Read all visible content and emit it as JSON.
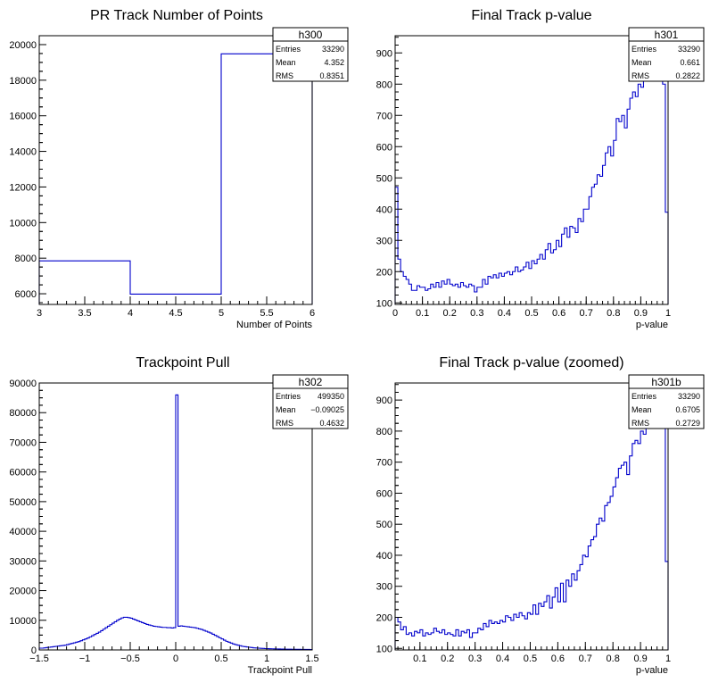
{
  "chart_data": [
    {
      "type": "bar",
      "title": "PR Track Number of Points",
      "xlabel": "Number of Points",
      "ylabel": "",
      "xlim": [
        3,
        6
      ],
      "ylim": [
        5400,
        20500
      ],
      "xticks": [
        3,
        3.5,
        4,
        4.5,
        5,
        5.5,
        6
      ],
      "xtick_labels": [
        "3",
        "3.5",
        "4",
        "4.5",
        "5",
        "5.5",
        "6"
      ],
      "yticks": [
        6000,
        8000,
        10000,
        12000,
        14000,
        16000,
        18000,
        20000
      ],
      "ytick_labels": [
        "6000",
        "8000",
        "10000",
        "12000",
        "14000",
        "16000",
        "18000",
        "20000"
      ],
      "bin_edges": [
        3,
        4,
        5,
        6
      ],
      "values": [
        7850,
        5980,
        19480
      ],
      "stats": {
        "name": "h300",
        "rows": [
          [
            "Entries",
            "33290"
          ],
          [
            "Mean",
            "4.352"
          ],
          [
            "RMS",
            "0.8351"
          ]
        ]
      }
    },
    {
      "type": "bar",
      "title": "Final Track p-value",
      "xlabel": "p-value",
      "ylabel": "",
      "xlim": [
        0,
        1
      ],
      "ylim": [
        95,
        955
      ],
      "xticks": [
        0,
        0.1,
        0.2,
        0.3,
        0.4,
        0.5,
        0.6,
        0.7,
        0.8,
        0.9,
        1
      ],
      "xtick_labels": [
        "0",
        "0.1",
        "0.2",
        "0.3",
        "0.4",
        "0.5",
        "0.6",
        "0.7",
        "0.8",
        "0.9",
        "1"
      ],
      "yticks": [
        100,
        200,
        300,
        400,
        500,
        600,
        700,
        800,
        900
      ],
      "ytick_labels": [
        "100",
        "200",
        "300",
        "400",
        "500",
        "600",
        "700",
        "800",
        "900"
      ],
      "bin_edges_uniform": [
        0,
        1,
        100
      ],
      "values": [
        470,
        240,
        200,
        185,
        175,
        160,
        140,
        140,
        155,
        150,
        150,
        140,
        145,
        160,
        150,
        165,
        150,
        170,
        160,
        175,
        160,
        155,
        160,
        150,
        165,
        155,
        150,
        160,
        155,
        135,
        150,
        150,
        175,
        160,
        185,
        180,
        190,
        180,
        195,
        185,
        195,
        200,
        190,
        200,
        215,
        200,
        205,
        215,
        230,
        210,
        235,
        225,
        240,
        255,
        240,
        270,
        290,
        260,
        270,
        300,
        280,
        320,
        340,
        310,
        345,
        340,
        325,
        370,
        360,
        400,
        400,
        440,
        470,
        480,
        510,
        505,
        540,
        580,
        600,
        570,
        620,
        690,
        680,
        700,
        660,
        720,
        755,
        775,
        760,
        800,
        790,
        820,
        810,
        850,
        815,
        870,
        815,
        815,
        800,
        390
      ],
      "stats": {
        "name": "h301",
        "rows": [
          [
            "Entries",
            "33290"
          ],
          [
            "Mean",
            "0.661"
          ],
          [
            "RMS",
            "0.2822"
          ]
        ]
      }
    },
    {
      "type": "bar",
      "title": "Trackpoint Pull",
      "xlabel": "Trackpoint Pull",
      "ylabel": "",
      "xlim": [
        -1.5,
        1.5
      ],
      "ylim": [
        0,
        90000
      ],
      "xticks": [
        -1.5,
        -1,
        -0.5,
        0,
        0.5,
        1,
        1.5
      ],
      "xtick_labels": [
        "−1.5",
        "−1",
        "−0.5",
        "0",
        "0.5",
        "1",
        "1.5"
      ],
      "yticks": [
        0,
        10000,
        20000,
        30000,
        40000,
        50000,
        60000,
        70000,
        80000,
        90000
      ],
      "ytick_labels": [
        "0",
        "10000",
        "20000",
        "30000",
        "40000",
        "50000",
        "60000",
        "70000",
        "80000",
        "90000"
      ],
      "bin_edges_uniform": [
        -1.5,
        1.5,
        120
      ],
      "values": [
        600,
        600,
        700,
        800,
        900,
        1000,
        1100,
        1200,
        1300,
        1400,
        1500,
        1600,
        1800,
        2000,
        2200,
        2400,
        2600,
        2800,
        3100,
        3400,
        3700,
        4000,
        4400,
        4800,
        5200,
        5600,
        6000,
        6500,
        7000,
        7500,
        8000,
        8500,
        9000,
        9500,
        10000,
        10400,
        10800,
        11000,
        11000,
        10900,
        10700,
        10400,
        10100,
        9800,
        9500,
        9200,
        8900,
        8600,
        8400,
        8200,
        8000,
        7900,
        7800,
        7700,
        7600,
        7600,
        7500,
        7500,
        7400,
        7500,
        86000,
        8000,
        8100,
        8000,
        7900,
        7800,
        7700,
        7600,
        7500,
        7300,
        7100,
        6900,
        6600,
        6300,
        6000,
        5700,
        5300,
        4900,
        4500,
        4100,
        3700,
        3300,
        2900,
        2600,
        2300,
        2000,
        1800,
        1600,
        1400,
        1200,
        1100,
        1000,
        900,
        800,
        700,
        650,
        600,
        550,
        500,
        450,
        420,
        400,
        380,
        360,
        340,
        320,
        300,
        280,
        260,
        250,
        240,
        230,
        220,
        210,
        200,
        190,
        180,
        170,
        160,
        150
      ],
      "stats": {
        "name": "h302",
        "rows": [
          [
            "Entries",
            "499350"
          ],
          [
            "Mean",
            "−0.09025"
          ],
          [
            "RMS",
            "0.4632"
          ]
        ]
      }
    },
    {
      "type": "bar",
      "title": "Final Track p-value (zoomed)",
      "xlabel": "p-value",
      "ylabel": "",
      "xlim": [
        0.01,
        1
      ],
      "ylim": [
        95,
        955
      ],
      "xticks": [
        0.1,
        0.2,
        0.3,
        0.4,
        0.5,
        0.6,
        0.7,
        0.8,
        0.9,
        1
      ],
      "xtick_labels": [
        "0.1",
        "0.2",
        "0.3",
        "0.4",
        "0.5",
        "0.6",
        "0.7",
        "0.8",
        "0.9",
        "1"
      ],
      "yticks": [
        100,
        200,
        300,
        400,
        500,
        600,
        700,
        800,
        900
      ],
      "ytick_labels": [
        "100",
        "200",
        "300",
        "400",
        "500",
        "600",
        "700",
        "800",
        "900"
      ],
      "bin_edges_uniform": [
        0.01,
        1,
        99
      ],
      "values": [
        200,
        185,
        160,
        170,
        145,
        150,
        140,
        155,
        150,
        160,
        140,
        150,
        145,
        150,
        165,
        155,
        150,
        160,
        145,
        150,
        145,
        140,
        160,
        140,
        155,
        150,
        160,
        135,
        150,
        150,
        165,
        160,
        180,
        170,
        190,
        180,
        185,
        180,
        190,
        185,
        205,
        200,
        190,
        210,
        200,
        215,
        205,
        195,
        215,
        210,
        240,
        210,
        245,
        235,
        250,
        270,
        230,
        265,
        295,
        250,
        310,
        250,
        320,
        300,
        340,
        320,
        350,
        370,
        400,
        395,
        430,
        450,
        460,
        500,
        520,
        510,
        560,
        570,
        590,
        620,
        650,
        680,
        690,
        700,
        660,
        720,
        760,
        770,
        760,
        800,
        790,
        820,
        810,
        850,
        820,
        870,
        815,
        815,
        380
      ],
      "stats": {
        "name": "h301b",
        "rows": [
          [
            "Entries",
            "33290"
          ],
          [
            "Mean",
            "0.6705"
          ],
          [
            "RMS",
            "0.2729"
          ]
        ]
      }
    }
  ]
}
